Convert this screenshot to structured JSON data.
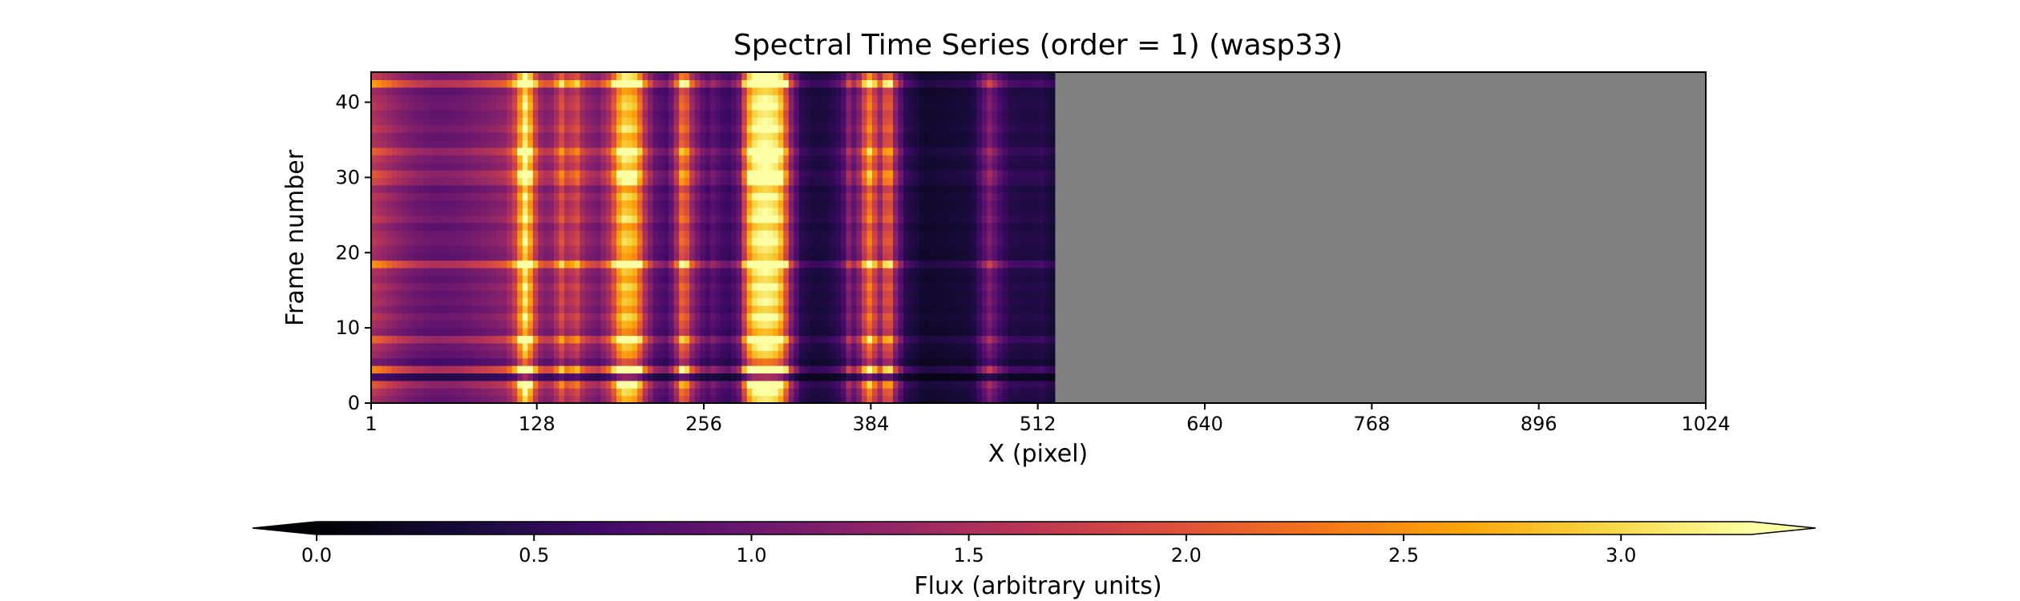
{
  "chart_data": {
    "type": "heatmap",
    "title": "Spectral Time Series (order = 1) (wasp33)",
    "xlabel": "X (pixel)",
    "ylabel": "Frame number",
    "xlim": [
      1,
      1024
    ],
    "ylim": [
      0,
      44
    ],
    "x_ticks": [
      1,
      128,
      256,
      384,
      512,
      640,
      768,
      896,
      1024
    ],
    "y_ticks": [
      0,
      10,
      20,
      30,
      40
    ],
    "data_x_extent": [
      1,
      525
    ],
    "n_frames": 44,
    "nodata_color": "#808080",
    "colormap": "inferno",
    "colorbar": {
      "label": "Flux (arbitrary units)",
      "vmin": 0.0,
      "vmax": 3.3,
      "ticks": [
        0.0,
        0.5,
        1.0,
        1.5,
        2.0,
        2.5,
        3.0
      ],
      "extend": "both",
      "orientation": "horizontal"
    },
    "column_profile": [
      {
        "x": 1,
        "flux": 1.6
      },
      {
        "x": 10,
        "flux": 1.45
      },
      {
        "x": 20,
        "flux": 1.25
      },
      {
        "x": 35,
        "flux": 1.05
      },
      {
        "x": 50,
        "flux": 0.95
      },
      {
        "x": 70,
        "flux": 1.0
      },
      {
        "x": 90,
        "flux": 1.15
      },
      {
        "x": 105,
        "flux": 1.3
      },
      {
        "x": 113,
        "flux": 1.9
      },
      {
        "x": 117,
        "flux": 3.1
      },
      {
        "x": 121,
        "flux": 3.2
      },
      {
        "x": 125,
        "flux": 2.0
      },
      {
        "x": 132,
        "flux": 1.2
      },
      {
        "x": 140,
        "flux": 1.25
      },
      {
        "x": 148,
        "flux": 2.0
      },
      {
        "x": 152,
        "flux": 1.4
      },
      {
        "x": 158,
        "flux": 1.9
      },
      {
        "x": 164,
        "flux": 1.3
      },
      {
        "x": 175,
        "flux": 1.1
      },
      {
        "x": 185,
        "flux": 1.6
      },
      {
        "x": 190,
        "flux": 2.5
      },
      {
        "x": 195,
        "flux": 2.9
      },
      {
        "x": 201,
        "flux": 2.8
      },
      {
        "x": 205,
        "flux": 2.6
      },
      {
        "x": 210,
        "flux": 1.6
      },
      {
        "x": 218,
        "flux": 0.9
      },
      {
        "x": 228,
        "flux": 0.7
      },
      {
        "x": 234,
        "flux": 1.2
      },
      {
        "x": 238,
        "flux": 2.0
      },
      {
        "x": 241,
        "flux": 2.4
      },
      {
        "x": 245,
        "flux": 1.5
      },
      {
        "x": 252,
        "flux": 1.0
      },
      {
        "x": 258,
        "flux": 0.7
      },
      {
        "x": 264,
        "flux": 0.9
      },
      {
        "x": 268,
        "flux": 0.7
      },
      {
        "x": 276,
        "flux": 0.6
      },
      {
        "x": 284,
        "flux": 1.0
      },
      {
        "x": 290,
        "flux": 2.6
      },
      {
        "x": 296,
        "flux": 3.2
      },
      {
        "x": 303,
        "flux": 3.3
      },
      {
        "x": 310,
        "flux": 3.2
      },
      {
        "x": 316,
        "flux": 2.7
      },
      {
        "x": 322,
        "flux": 1.3
      },
      {
        "x": 330,
        "flux": 0.5
      },
      {
        "x": 340,
        "flux": 0.35
      },
      {
        "x": 352,
        "flux": 0.4
      },
      {
        "x": 362,
        "flux": 0.6
      },
      {
        "x": 368,
        "flux": 1.3
      },
      {
        "x": 372,
        "flux": 0.8
      },
      {
        "x": 378,
        "flux": 1.6
      },
      {
        "x": 382,
        "flux": 2.4
      },
      {
        "x": 386,
        "flux": 2.0
      },
      {
        "x": 390,
        "flux": 1.2
      },
      {
        "x": 394,
        "flux": 1.8
      },
      {
        "x": 398,
        "flux": 2.2
      },
      {
        "x": 402,
        "flux": 1.3
      },
      {
        "x": 410,
        "flux": 0.5
      },
      {
        "x": 425,
        "flux": 0.25
      },
      {
        "x": 445,
        "flux": 0.3
      },
      {
        "x": 462,
        "flux": 0.35
      },
      {
        "x": 470,
        "flux": 0.8
      },
      {
        "x": 476,
        "flux": 1.2
      },
      {
        "x": 480,
        "flux": 0.8
      },
      {
        "x": 490,
        "flux": 0.45
      },
      {
        "x": 505,
        "flux": 0.4
      },
      {
        "x": 515,
        "flux": 0.45
      },
      {
        "x": 525,
        "flux": 0.3
      }
    ],
    "row_scale": [
      {
        "frame": 0,
        "scale": 0.95
      },
      {
        "frame": 1,
        "scale": 1.05
      },
      {
        "frame": 2,
        "scale": 1.3
      },
      {
        "frame": 3,
        "scale": 0.45
      },
      {
        "frame": 4,
        "scale": 1.55
      },
      {
        "frame": 5,
        "scale": 0.7
      },
      {
        "frame": 6,
        "scale": 0.9
      },
      {
        "frame": 7,
        "scale": 1.0
      },
      {
        "frame": 8,
        "scale": 1.4
      },
      {
        "frame": 9,
        "scale": 0.85
      },
      {
        "frame": 10,
        "scale": 0.95
      },
      {
        "frame": 11,
        "scale": 1.05
      },
      {
        "frame": 12,
        "scale": 0.9
      },
      {
        "frame": 13,
        "scale": 1.0
      },
      {
        "frame": 14,
        "scale": 0.95
      },
      {
        "frame": 15,
        "scale": 1.05
      },
      {
        "frame": 16,
        "scale": 0.92
      },
      {
        "frame": 17,
        "scale": 1.0
      },
      {
        "frame": 18,
        "scale": 1.6
      },
      {
        "frame": 19,
        "scale": 0.9
      },
      {
        "frame": 20,
        "scale": 0.95
      },
      {
        "frame": 21,
        "scale": 1.05
      },
      {
        "frame": 22,
        "scale": 1.0
      },
      {
        "frame": 23,
        "scale": 0.9
      },
      {
        "frame": 24,
        "scale": 1.1
      },
      {
        "frame": 25,
        "scale": 1.0
      },
      {
        "frame": 26,
        "scale": 0.95
      },
      {
        "frame": 27,
        "scale": 1.05
      },
      {
        "frame": 28,
        "scale": 0.9
      },
      {
        "frame": 29,
        "scale": 1.2
      },
      {
        "frame": 30,
        "scale": 1.3
      },
      {
        "frame": 31,
        "scale": 1.0
      },
      {
        "frame": 32,
        "scale": 1.1
      },
      {
        "frame": 33,
        "scale": 1.35
      },
      {
        "frame": 34,
        "scale": 1.0
      },
      {
        "frame": 35,
        "scale": 0.95
      },
      {
        "frame": 36,
        "scale": 1.1
      },
      {
        "frame": 37,
        "scale": 1.0
      },
      {
        "frame": 38,
        "scale": 0.95
      },
      {
        "frame": 39,
        "scale": 1.05
      },
      {
        "frame": 40,
        "scale": 1.0
      },
      {
        "frame": 41,
        "scale": 0.9
      },
      {
        "frame": 42,
        "scale": 1.65
      },
      {
        "frame": 43,
        "scale": 1.1
      }
    ]
  }
}
